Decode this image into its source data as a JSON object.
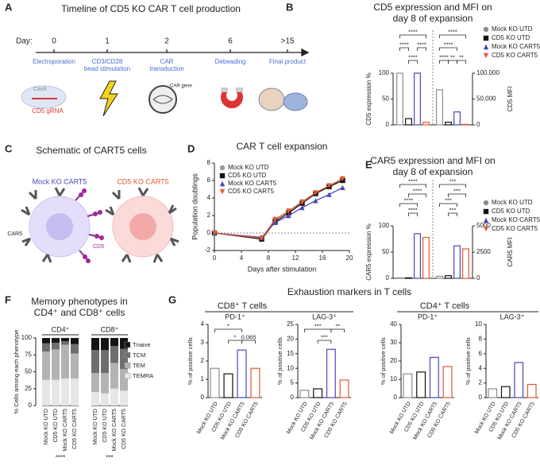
{
  "panel_labels": [
    "A",
    "B",
    "C",
    "D",
    "E",
    "F",
    "G"
  ],
  "timeline": {
    "title": "Timeline of CD5 KO CAR T cell production",
    "day_label": "Day:",
    "steps": [
      {
        "day": "0",
        "label": [
          "Electroporation"
        ]
      },
      {
        "day": "1",
        "label": [
          "CD3/CD28",
          "bead stimulation"
        ]
      },
      {
        "day": "2",
        "label": [
          "CAR",
          "transduction"
        ]
      },
      {
        "day": "6",
        "label": [
          "Debeading"
        ]
      },
      {
        "day": ">15",
        "label": [
          "Final product"
        ]
      }
    ],
    "icon_labels": [
      "Cas9",
      "CD5 gRNA",
      "CAR gene"
    ]
  },
  "schematic": {
    "title": "Schematic of CART5 cells",
    "cells": [
      "Mock KO CART5",
      "CD5 KO CART5"
    ],
    "labels": [
      "CAR5",
      "CD5"
    ]
  },
  "exhaustion": {
    "title": "Exhaustion markers in T cells",
    "groups": [
      "CD8⁺ T cells",
      "CD4⁺ T cells"
    ]
  },
  "chart_data": [
    {
      "type": "dual_bar",
      "title": [
        "CD5 expression and MFI on",
        "day 8 of expansion"
      ],
      "categories": [
        "Mock KO UTD",
        "CD5 KO UTD",
        "Mock KO CART5",
        "CD5 KO CART5"
      ],
      "colors": [
        "#8c8c8c",
        "#111111",
        "#4b47b8",
        "#e35a2e"
      ],
      "ylabel": "CD5 expression %",
      "y2label": "CD5 MFI",
      "series": [
        {
          "values": [
            100,
            12,
            100,
            5
          ]
        },
        {
          "values": [
            68000,
            5000,
            25000,
            1000
          ],
          "axis": "y2"
        }
      ],
      "ylim": [
        0,
        100
      ],
      "yticks": [
        0,
        50,
        100
      ],
      "y2lim": [
        0,
        100000
      ],
      "y2ticks": [
        0,
        {
          "value": 50000,
          "label": "50,000"
        },
        {
          "value": 100000,
          "label": "100,000"
        }
      ],
      "annotations": [
        "****",
        "****",
        "****",
        "****",
        "****",
        "****",
        "****",
        "**",
        "**"
      ]
    },
    {
      "type": "line",
      "title": "CAR T cell expansion",
      "xlabel": "Days after stimulation",
      "ylabel": "Population doublings",
      "x": [
        0,
        7,
        9,
        11,
        13,
        15,
        17,
        19
      ],
      "series": [
        {
          "name": "Mock KO UTD",
          "color": "#9a9a9a",
          "values": [
            0,
            -0.6,
            1.6,
            2.5,
            3.6,
            4.6,
            5.4,
            6.2
          ]
        },
        {
          "name": "CD5 KO UTD",
          "color": "#111111",
          "values": [
            0,
            -0.7,
            1.3,
            2.3,
            3.4,
            4.5,
            5.3,
            6.0
          ]
        },
        {
          "name": "Mock KO CART5",
          "color": "#4b47b8",
          "values": [
            0,
            -0.5,
            1.2,
            2.0,
            2.9,
            3.7,
            4.4,
            5.2
          ]
        },
        {
          "name": "CD5 KO CART5",
          "color": "#e35a2e",
          "values": [
            0,
            -0.6,
            1.5,
            2.5,
            3.5,
            4.6,
            5.4,
            6.2
          ]
        }
      ],
      "xlim": [
        0,
        20
      ],
      "xticks": [
        0,
        4,
        8,
        12,
        16,
        20
      ],
      "ylim": [
        -2,
        8
      ],
      "yticks": [
        -2,
        0,
        2,
        4,
        6,
        8
      ]
    },
    {
      "type": "dual_bar",
      "title": [
        "CAR5 expression and MFI on",
        "day 8 of expansion"
      ],
      "categories": [
        "Mock KO UTD",
        "CD5 KO UTD",
        "Mock KO CART5",
        "CD5 KO CART5"
      ],
      "colors": [
        "#8c8c8c",
        "#111111",
        "#4b47b8",
        "#e35a2e"
      ],
      "ylabel": "CAR5 expression %",
      "y2label": "CAR5 MFI",
      "series": [
        {
          "values": [
            1,
            1,
            85,
            78
          ]
        },
        {
          "values": [
            200,
            250,
            3100,
            2800
          ],
          "axis": "y2"
        }
      ],
      "ylim": [
        0,
        100
      ],
      "yticks": [
        0,
        50,
        100
      ],
      "y2lim": [
        0,
        5000
      ],
      "y2ticks": [
        0,
        2500,
        5000
      ],
      "annotations": [
        "****",
        "****",
        "****",
        "****",
        "***",
        "***",
        "***",
        "***"
      ]
    },
    {
      "type": "stacked_bar",
      "title": [
        "Memory phenotypes in",
        "CD4⁺ and CD8⁺ cells"
      ],
      "ylabel": "% Cells among each phenotype",
      "groups": [
        "CD4⁺",
        "CD8⁺"
      ],
      "categories": [
        "Mock KO UTD",
        "CD5 KO UTD",
        "Mock KO CART5",
        "CD5 KO CART5",
        "Mock KO UTD",
        "CD5 KO UTD",
        "Mock KO CART5",
        "CD5 KO CART5"
      ],
      "series": [
        {
          "name": "TEMRA",
          "color": "#e6e6e6",
          "values": [
            38,
            38,
            40,
            40,
            20,
            18,
            25,
            22
          ]
        },
        {
          "name": "TEM",
          "color": "#b3b3b3",
          "values": [
            42,
            45,
            50,
            37,
            28,
            30,
            38,
            32
          ]
        },
        {
          "name": "TCM",
          "color": "#6e6e6e",
          "values": [
            12,
            10,
            5,
            14,
            34,
            34,
            25,
            30
          ]
        },
        {
          "name": "Tnaive",
          "color": "#141414",
          "values": [
            8,
            7,
            5,
            9,
            18,
            18,
            12,
            16
          ]
        }
      ],
      "ylim": [
        0,
        100
      ],
      "yticks": [
        0,
        25,
        50,
        75,
        100
      ],
      "annotations": [
        "****",
        "***"
      ]
    },
    {
      "type": "bar",
      "title": "PD-1⁺",
      "ylabel": "% of positive cells",
      "categories": [
        "Mock KO UTD",
        "CD5 KO UTD",
        "Mock KO CART5",
        "CD5 KO CART5"
      ],
      "colors": [
        "#8c8c8c",
        "#111111",
        "#4b47b8",
        "#e35a2e"
      ],
      "values": [
        1.6,
        1.3,
        2.6,
        1.6
      ],
      "ylim": [
        0,
        4
      ],
      "yticks": [
        0,
        1,
        2,
        3,
        4
      ],
      "annotations": [
        "*",
        "*",
        "0.065"
      ]
    },
    {
      "type": "bar",
      "title": "LAG-3⁺",
      "ylabel": "% of positive cells",
      "categories": [
        "Mock KO UTD",
        "CD5 KO UTD",
        "Mock KO CART5",
        "CD5 KO CART5"
      ],
      "colors": [
        "#8c8c8c",
        "#111111",
        "#4b47b8",
        "#e35a2e"
      ],
      "values": [
        2.5,
        3,
        16.5,
        6
      ],
      "ylim": [
        0,
        25
      ],
      "yticks": [
        0,
        5,
        10,
        15,
        20,
        25
      ],
      "annotations": [
        "***",
        "***",
        "**"
      ]
    },
    {
      "type": "bar",
      "title": "PD-1⁺",
      "ylabel": "% of positive cells",
      "categories": [
        "Mock KO UTD",
        "CD5 KO UTD",
        "Mock KO CART5",
        "CD5 KO CART5"
      ],
      "colors": [
        "#8c8c8c",
        "#111111",
        "#4b47b8",
        "#e35a2e"
      ],
      "values": [
        13,
        14,
        22,
        17
      ],
      "ylim": [
        0,
        40
      ],
      "yticks": [
        0,
        10,
        20,
        30,
        40
      ]
    },
    {
      "type": "bar",
      "title": "LAG-3⁺",
      "ylabel": "% of positive cells",
      "categories": [
        "Mock KO UTD",
        "CD5 KO UTD",
        "Mock KO CART5",
        "CD5 KO CART5"
      ],
      "colors": [
        "#8c8c8c",
        "#111111",
        "#4b47b8",
        "#e35a2e"
      ],
      "values": [
        1.2,
        1.5,
        4.8,
        1.8
      ],
      "ylim": [
        0,
        10
      ],
      "yticks": [
        0,
        2,
        4,
        6,
        8,
        10
      ]
    }
  ]
}
